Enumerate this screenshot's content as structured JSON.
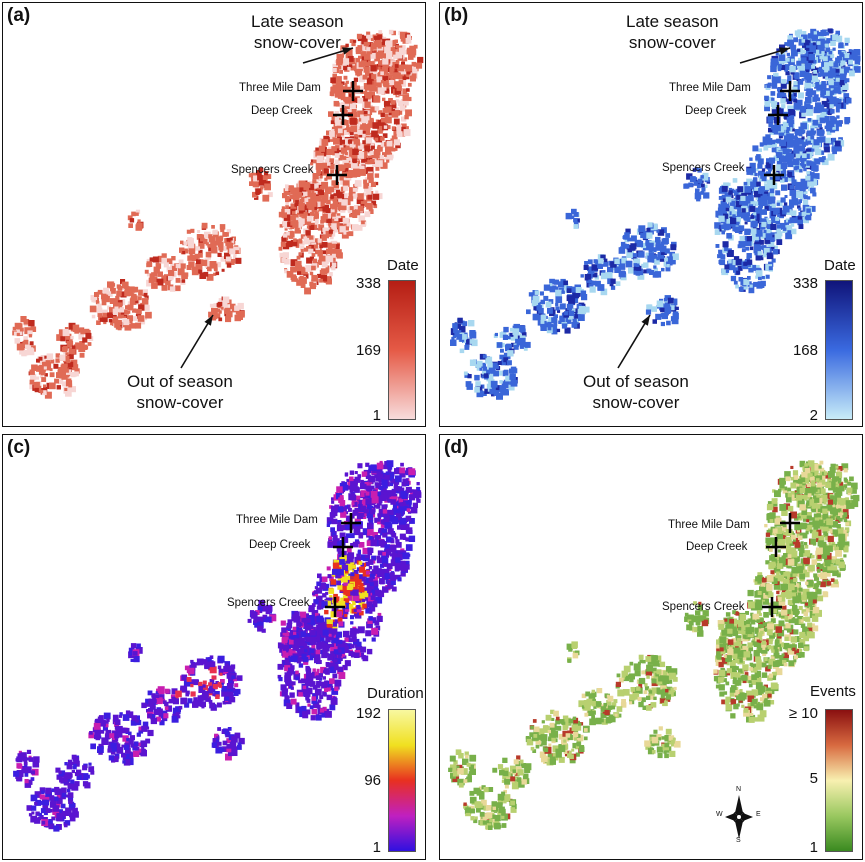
{
  "panels": [
    {
      "label": "(a)",
      "palette": [
        "#f7d6d4",
        "#e06a55",
        "#bf2a1e"
      ],
      "annot_top": [
        "Late season",
        "snow-cover"
      ],
      "annot_bottom": [
        "Out of season",
        "snow-cover"
      ],
      "legend_title": "Date",
      "legend_ticks": [
        "338",
        "169",
        "1"
      ],
      "colorbar": [
        "#b51e14",
        "#e55a46",
        "#f8dcdc"
      ],
      "sites": [
        "Three Mile Dam",
        "Deep Creek",
        "Spencers Creek"
      ]
    },
    {
      "label": "(b)",
      "palette": [
        "#a8d8f0",
        "#3a66d8",
        "#1c2aa6"
      ],
      "annot_top": [
        "Late season",
        "snow-cover"
      ],
      "annot_bottom": [
        "Out of season",
        "snow-cover"
      ],
      "legend_title": "Date",
      "legend_ticks": [
        "338",
        "168",
        "2"
      ],
      "colorbar": [
        "#10147a",
        "#3a6ae0",
        "#c8ecf8"
      ],
      "sites": [
        "Three Mile Dam",
        "Deep Creek",
        "Spencers Creek"
      ]
    },
    {
      "label": "(c)",
      "palette": [
        "#3b1ee0",
        "#5a14d0",
        "#c81eb0"
      ],
      "legend_title": "Duration",
      "legend_ticks": [
        "192",
        "96",
        "1"
      ],
      "colorbar": [
        "#f8f8a0",
        "#f0e020",
        "#e83020",
        "#c020c0",
        "#3010e0"
      ],
      "sites": [
        "Three Mile Dam",
        "Deep Creek",
        "Spencers Creek"
      ]
    },
    {
      "label": "(d)",
      "palette": [
        "#78b04a",
        "#b8d070",
        "#e8d898",
        "#b83a2a"
      ],
      "legend_title": "Events",
      "legend_ticks": [
        "≥ 10",
        "5",
        "1"
      ],
      "colorbar": [
        "#8a1010",
        "#d86a40",
        "#f8f0b0",
        "#9ac860",
        "#3a8a20"
      ],
      "sites": [
        "Three Mile Dam",
        "Deep Creek",
        "Spencers Creek"
      ],
      "compass": {
        "n": "N",
        "s": "S",
        "e": "E",
        "w": "W"
      }
    }
  ]
}
